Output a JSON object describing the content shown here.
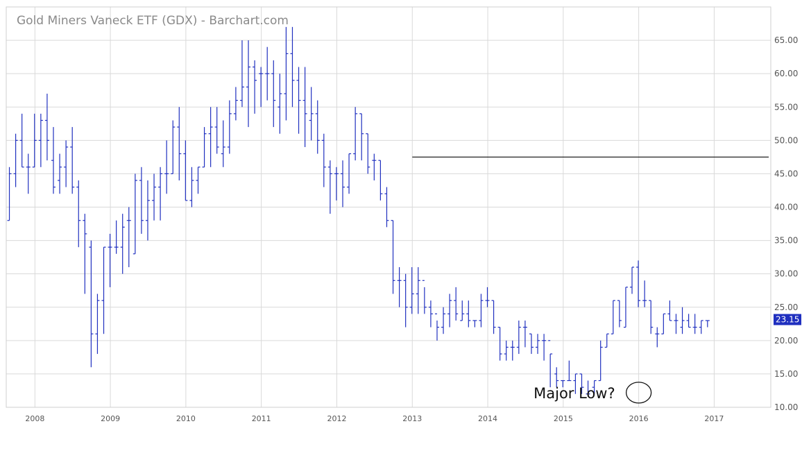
{
  "chart_data": {
    "type": "ohlc",
    "title": "Gold Miners Vaneck ETF (GDX) - Barchart.com",
    "period": "monthly",
    "xlim": [
      2007.62,
      2017.75
    ],
    "ylim": [
      10,
      70
    ],
    "ytick_labels": [
      "10.00",
      "15.00",
      "20.00",
      "25.00",
      "30.00",
      "35.00",
      "40.00",
      "45.00",
      "50.00",
      "55.00",
      "60.00",
      "65.00"
    ],
    "xtick_labels": [
      "2008",
      "2009",
      "2010",
      "2011",
      "2012",
      "2013",
      "2014",
      "2015",
      "2016",
      "2017"
    ],
    "grid": true,
    "last_price": {
      "value": 23.15,
      "label": "23.15",
      "color": "#1f2fbf"
    },
    "bar_color": "#1f2fbf",
    "bars": [
      [
        38,
        46,
        38,
        45
      ],
      [
        45,
        51,
        43,
        50
      ],
      [
        50,
        54,
        46,
        46
      ],
      [
        46,
        48,
        42,
        46
      ],
      [
        46,
        54,
        46,
        50
      ],
      [
        50,
        54,
        46,
        53
      ],
      [
        53,
        57,
        47,
        50
      ],
      [
        47,
        52,
        42,
        43
      ],
      [
        44,
        48,
        42,
        46
      ],
      [
        46,
        50,
        43,
        49
      ],
      [
        49,
        52,
        42,
        43
      ],
      [
        43,
        44,
        34,
        38
      ],
      [
        38,
        39,
        27,
        36
      ],
      [
        34,
        35,
        16,
        21
      ],
      [
        21,
        27,
        18,
        26
      ],
      [
        26,
        34,
        21,
        34
      ],
      [
        34,
        36,
        28,
        34
      ],
      [
        34,
        38,
        33,
        34
      ],
      [
        34,
        39,
        30,
        37
      ],
      [
        38,
        40,
        31,
        38
      ],
      [
        33,
        45,
        33,
        44
      ],
      [
        44,
        46,
        36,
        38
      ],
      [
        38,
        44,
        35,
        41
      ],
      [
        41,
        45,
        38,
        43
      ],
      [
        43,
        46,
        38,
        45
      ],
      [
        45,
        50,
        42,
        45
      ],
      [
        45,
        53,
        45,
        52
      ],
      [
        52,
        55,
        44,
        48
      ],
      [
        48,
        50,
        41,
        41
      ],
      [
        41,
        46,
        40,
        44
      ],
      [
        44,
        46,
        42,
        46
      ],
      [
        46,
        52,
        46,
        51
      ],
      [
        51,
        55,
        46,
        52
      ],
      [
        52,
        55,
        48,
        49
      ],
      [
        48,
        53,
        46,
        49
      ],
      [
        49,
        56,
        48,
        54
      ],
      [
        54,
        58,
        53,
        56
      ],
      [
        56,
        65,
        55,
        58
      ],
      [
        58,
        65,
        52,
        61
      ],
      [
        61,
        62,
        54,
        59
      ],
      [
        60,
        61,
        55,
        60
      ],
      [
        60,
        64,
        56,
        60
      ],
      [
        60,
        62,
        52,
        56
      ],
      [
        55,
        60,
        51,
        57
      ],
      [
        57,
        67,
        53,
        63
      ],
      [
        63,
        67,
        55,
        59
      ],
      [
        59,
        61,
        51,
        56
      ],
      [
        56,
        61,
        49,
        54
      ],
      [
        53,
        58,
        50,
        54
      ],
      [
        54,
        56,
        48,
        50
      ],
      [
        50,
        51,
        43,
        46
      ],
      [
        46,
        47,
        39,
        45
      ],
      [
        45,
        46,
        41,
        45
      ],
      [
        45,
        47,
        40,
        43
      ],
      [
        43,
        48,
        42,
        48
      ],
      [
        48,
        55,
        47,
        54
      ],
      [
        54,
        54,
        47,
        51
      ],
      [
        51,
        51,
        45,
        46
      ],
      [
        47,
        48,
        44,
        47
      ],
      [
        47,
        47,
        41,
        42
      ],
      [
        42,
        43,
        37,
        38
      ],
      [
        38,
        38,
        27,
        29
      ],
      [
        29,
        31,
        25,
        29
      ],
      [
        29,
        30,
        22,
        25
      ],
      [
        25,
        31,
        24,
        27
      ],
      [
        27,
        31,
        24,
        29
      ],
      [
        29,
        28,
        24,
        25
      ],
      [
        25,
        26,
        22,
        24
      ],
      [
        24,
        23,
        20,
        22
      ],
      [
        22,
        25,
        21,
        24
      ],
      [
        24,
        27,
        22,
        26
      ],
      [
        26,
        28,
        23,
        24
      ],
      [
        23,
        26,
        23,
        24
      ],
      [
        24,
        26,
        22,
        23
      ],
      [
        23,
        23,
        22,
        23
      ],
      [
        23,
        27,
        22,
        26
      ],
      [
        26,
        28,
        25,
        26
      ],
      [
        26,
        26,
        21,
        22
      ],
      [
        22,
        22,
        17,
        18
      ],
      [
        18,
        20,
        17,
        19
      ],
      [
        19,
        20,
        17,
        19
      ],
      [
        19,
        23,
        18,
        22
      ],
      [
        22,
        23,
        19,
        22
      ],
      [
        21,
        21,
        18,
        19
      ],
      [
        19,
        21,
        18,
        20
      ],
      [
        20,
        21,
        17,
        20
      ],
      [
        20,
        18,
        13,
        18
      ],
      [
        15,
        16,
        13,
        14
      ],
      [
        14,
        14,
        13,
        14
      ],
      [
        14,
        17,
        14,
        14
      ],
      [
        14,
        15,
        12,
        15
      ],
      [
        15,
        15,
        12,
        13
      ],
      [
        12,
        14,
        12,
        12
      ],
      [
        13,
        14,
        12,
        14
      ],
      [
        14,
        20,
        14,
        19
      ],
      [
        19,
        21,
        19,
        21
      ],
      [
        21,
        26,
        21,
        26
      ],
      [
        26,
        26,
        22,
        23
      ],
      [
        22,
        28,
        22,
        28
      ],
      [
        28,
        31,
        27,
        31
      ],
      [
        31,
        32,
        25,
        26
      ],
      [
        26,
        29,
        25,
        26
      ],
      [
        26,
        26,
        21,
        22
      ],
      [
        21,
        22,
        19,
        21
      ],
      [
        21,
        24,
        21,
        24
      ],
      [
        24,
        26,
        23,
        23
      ],
      [
        23,
        24,
        21,
        23
      ],
      [
        22,
        25,
        21,
        23
      ],
      [
        23,
        24,
        22,
        22
      ],
      [
        22,
        24,
        21,
        22
      ],
      [
        22,
        23,
        21,
        23
      ],
      [
        23,
        23,
        22,
        23
      ]
    ],
    "annotations": {
      "resistance_line": {
        "value": 47.5,
        "from": 2013.0,
        "to": 2017.75
      },
      "low_marker": {
        "label": "Major Low?",
        "x": 2016.0,
        "y": 12.2
      }
    }
  }
}
